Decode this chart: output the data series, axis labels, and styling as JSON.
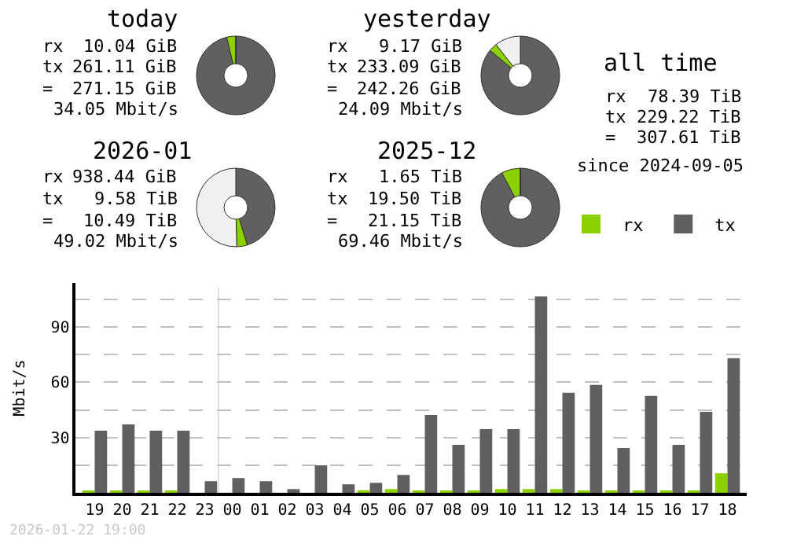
{
  "chart_data": [
    {
      "type": "donut",
      "title": "today",
      "categories": [
        null,
        null,
        null
      ],
      "values": [
        96.3,
        3.7,
        0
      ],
      "colors": [
        "#606060",
        "#8cd000",
        "#f0f0f0"
      ],
      "annotations": [
        "rx 10.04 GiB",
        "tx 261.11 GiB",
        "= 271.15 GiB",
        "34.05 Mbit/s"
      ]
    },
    {
      "type": "donut",
      "title": "yesterday",
      "categories": [
        null,
        null,
        null
      ],
      "values": [
        86.0,
        3.4,
        10.6
      ],
      "colors": [
        "#606060",
        "#8cd000",
        "#f0f0f0"
      ],
      "annotations": [
        "rx 9.17 GiB",
        "tx 233.09 GiB",
        "= 242.26 GiB",
        "24.09 Mbit/s"
      ]
    },
    {
      "type": "donut",
      "title": "2026-01",
      "categories": [
        null,
        null,
        null
      ],
      "values": [
        45.3,
        4.3,
        50.4
      ],
      "colors": [
        "#606060",
        "#8cd000",
        "#f0f0f0"
      ],
      "annotations": [
        "rx 938.44 GiB",
        "tx 9.58 TiB",
        "= 10.49 TiB",
        "49.02 Mbit/s"
      ]
    },
    {
      "type": "donut",
      "title": "2025-12",
      "categories": [
        null,
        null,
        null
      ],
      "values": [
        92.2,
        7.8,
        0
      ],
      "colors": [
        "#606060",
        "#8cd000",
        "#f0f0f0"
      ],
      "annotations": [
        "rx 1.65 TiB",
        "tx 19.50 TiB",
        "= 21.15 TiB",
        "69.46 Mbit/s"
      ]
    },
    {
      "type": "other",
      "title": "all time",
      "annotations": [
        "rx 78.39 TiB",
        "tx 229.22 TiB",
        "= 307.61 TiB",
        "since 2024-09-05"
      ]
    },
    {
      "type": "bar",
      "ylabel": "Mbit/s",
      "categories": [
        "19",
        "20",
        "21",
        "22",
        "23",
        "00",
        "01",
        "02",
        "03",
        "04",
        "05",
        "06",
        "07",
        "08",
        "09",
        "10",
        "11",
        "12",
        "13",
        "14",
        "15",
        "16",
        "17",
        "18"
      ],
      "series": [
        {
          "name": "rx",
          "color": "#8cd000",
          "values": [
            1.1,
            1.1,
            1.1,
            1.1,
            0,
            0,
            0,
            0,
            0,
            0,
            1.4,
            2.0,
            1.1,
            1.1,
            1.1,
            2.0,
            2.0,
            2.0,
            1.1,
            1.1,
            1.1,
            1.1,
            1.1,
            10.6
          ]
        },
        {
          "name": "tx",
          "color": "#606060",
          "values": [
            33.7,
            37.1,
            33.7,
            33.7,
            6.3,
            8.0,
            6.3,
            2.0,
            14.9,
            4.6,
            5.4,
            9.7,
            42.3,
            26.0,
            34.6,
            34.6,
            106.6,
            54.3,
            58.6,
            24.3,
            52.6,
            26.0,
            44.0,
            73.1
          ]
        }
      ],
      "ylim": [
        0,
        114
      ],
      "yticks": [
        {
          "value": 15,
          "label": null
        },
        30,
        {
          "value": 45,
          "label": null
        },
        60,
        {
          "value": 75,
          "label": null
        },
        90,
        {
          "value": 105,
          "label": null
        }
      ],
      "grid": "y",
      "legend": "top right",
      "ref_lines": [
        {
          "axis": "x",
          "value": "00",
          "label": null,
          "color": "#e0e0e0"
        }
      ],
      "annotations": [
        "2026-01-22 19:00"
      ]
    }
  ]
}
